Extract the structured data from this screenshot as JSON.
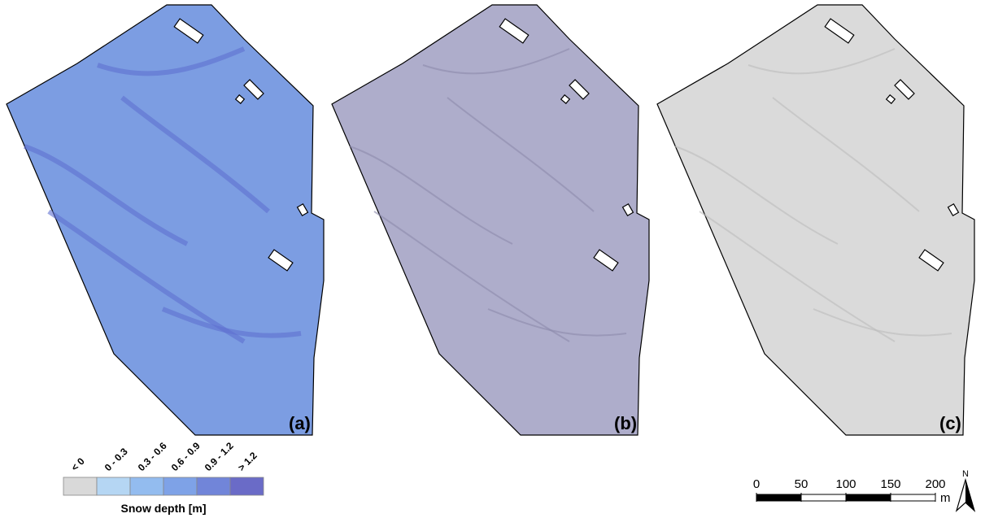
{
  "panels": [
    {
      "label": "(a)",
      "fill": "#7c9de2"
    },
    {
      "label": "(b)",
      "fill": "#aeadcb"
    },
    {
      "label": "(c)",
      "fill": "#dadada"
    }
  ],
  "legend": {
    "title": "Snow depth [m]",
    "classes": [
      {
        "label": "< 0",
        "color": "#d9d9d9"
      },
      {
        "label": "0 - 0.3",
        "color": "#b5d6f3"
      },
      {
        "label": "0.3 - 0.6",
        "color": "#93bcef"
      },
      {
        "label": "0.6 - 0.9",
        "color": "#7ea2e7"
      },
      {
        "label": "0.9 - 1.2",
        "color": "#7185d9"
      },
      {
        "label": "> 1.2",
        "color": "#6a6bc7"
      }
    ]
  },
  "scale_bar": {
    "ticks": [
      0,
      50,
      100,
      150,
      200
    ],
    "unit": "m"
  },
  "north": "N"
}
